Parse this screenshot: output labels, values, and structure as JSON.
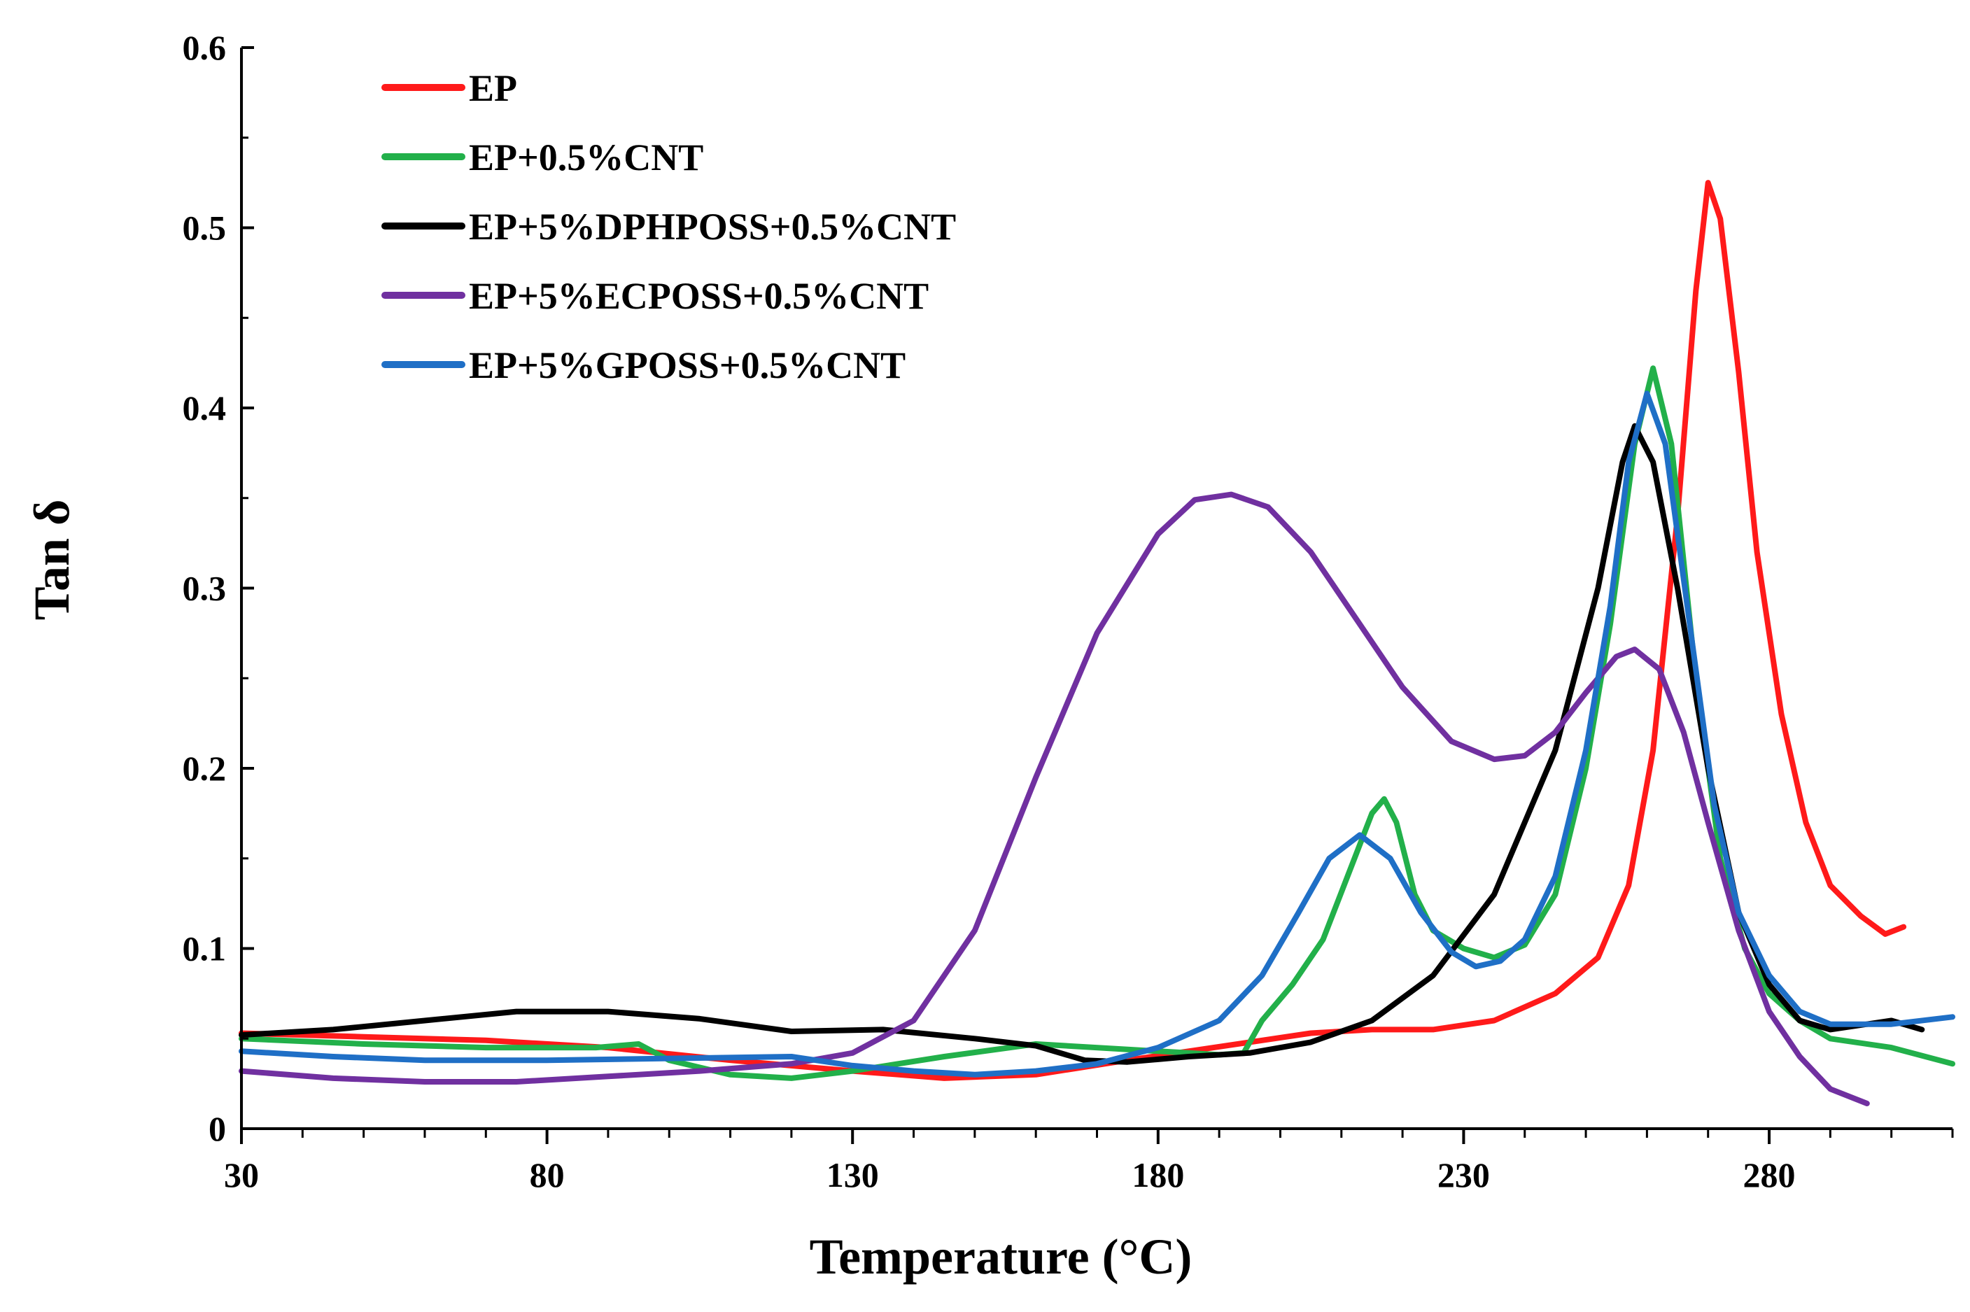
{
  "chart_data": {
    "type": "line",
    "title": "",
    "xlabel": "Temperature (°C)",
    "ylabel": "Tan δ",
    "xlim": [
      30,
      310
    ],
    "ylim": [
      0,
      0.6
    ],
    "xticks": [
      30,
      80,
      130,
      180,
      230,
      280
    ],
    "yticks": [
      0,
      0.1,
      0.2,
      0.3,
      0.4,
      0.5,
      0.6
    ],
    "xtick_labels": [
      "30",
      "80",
      "130",
      "180",
      "230",
      "280"
    ],
    "ytick_labels": [
      "0",
      "0.1",
      "0.2",
      "0.3",
      "0.4",
      "0.5",
      "0.6"
    ],
    "grid": false,
    "legend_position": "top-left",
    "series": [
      {
        "name": "EP",
        "color": "#ff1a1a",
        "points": [
          [
            30,
            0.053
          ],
          [
            50,
            0.051
          ],
          [
            70,
            0.049
          ],
          [
            90,
            0.045
          ],
          [
            110,
            0.038
          ],
          [
            130,
            0.032
          ],
          [
            145,
            0.028
          ],
          [
            160,
            0.03
          ],
          [
            175,
            0.038
          ],
          [
            185,
            0.043
          ],
          [
            195,
            0.048
          ],
          [
            205,
            0.053
          ],
          [
            215,
            0.055
          ],
          [
            225,
            0.055
          ],
          [
            235,
            0.06
          ],
          [
            245,
            0.075
          ],
          [
            252,
            0.095
          ],
          [
            257,
            0.135
          ],
          [
            261,
            0.21
          ],
          [
            265,
            0.34
          ],
          [
            268,
            0.465
          ],
          [
            270,
            0.525
          ],
          [
            272,
            0.505
          ],
          [
            275,
            0.42
          ],
          [
            278,
            0.32
          ],
          [
            282,
            0.23
          ],
          [
            286,
            0.17
          ],
          [
            290,
            0.135
          ],
          [
            295,
            0.118
          ],
          [
            299,
            0.108
          ],
          [
            302,
            0.112
          ]
        ]
      },
      {
        "name": "EP+0.5%CNT",
        "color": "#22b04a",
        "points": [
          [
            30,
            0.05
          ],
          [
            50,
            0.047
          ],
          [
            70,
            0.045
          ],
          [
            88,
            0.045
          ],
          [
            95,
            0.047
          ],
          [
            100,
            0.038
          ],
          [
            110,
            0.03
          ],
          [
            120,
            0.028
          ],
          [
            130,
            0.032
          ],
          [
            145,
            0.04
          ],
          [
            160,
            0.047
          ],
          [
            175,
            0.044
          ],
          [
            185,
            0.042
          ],
          [
            190,
            0.041
          ],
          [
            194,
            0.042
          ],
          [
            197,
            0.06
          ],
          [
            202,
            0.08
          ],
          [
            207,
            0.105
          ],
          [
            211,
            0.14
          ],
          [
            215,
            0.175
          ],
          [
            217,
            0.183
          ],
          [
            219,
            0.17
          ],
          [
            222,
            0.13
          ],
          [
            225,
            0.11
          ],
          [
            230,
            0.1
          ],
          [
            235,
            0.095
          ],
          [
            240,
            0.102
          ],
          [
            245,
            0.13
          ],
          [
            250,
            0.2
          ],
          [
            254,
            0.28
          ],
          [
            258,
            0.38
          ],
          [
            261,
            0.422
          ],
          [
            264,
            0.38
          ],
          [
            268,
            0.25
          ],
          [
            272,
            0.15
          ],
          [
            276,
            0.1
          ],
          [
            280,
            0.075
          ],
          [
            285,
            0.06
          ],
          [
            290,
            0.05
          ],
          [
            300,
            0.045
          ],
          [
            310,
            0.036
          ]
        ]
      },
      {
        "name": "EP+5%DPHPOSS+0.5%CNT",
        "color": "#000000",
        "points": [
          [
            30,
            0.052
          ],
          [
            45,
            0.055
          ],
          [
            60,
            0.06
          ],
          [
            75,
            0.065
          ],
          [
            90,
            0.065
          ],
          [
            105,
            0.061
          ],
          [
            120,
            0.054
          ],
          [
            135,
            0.055
          ],
          [
            150,
            0.05
          ],
          [
            160,
            0.046
          ],
          [
            168,
            0.038
          ],
          [
            175,
            0.037
          ],
          [
            185,
            0.04
          ],
          [
            195,
            0.042
          ],
          [
            205,
            0.048
          ],
          [
            215,
            0.06
          ],
          [
            225,
            0.085
          ],
          [
            235,
            0.13
          ],
          [
            245,
            0.21
          ],
          [
            252,
            0.3
          ],
          [
            256,
            0.37
          ],
          [
            258,
            0.39
          ],
          [
            261,
            0.37
          ],
          [
            265,
            0.3
          ],
          [
            270,
            0.2
          ],
          [
            275,
            0.12
          ],
          [
            280,
            0.08
          ],
          [
            285,
            0.06
          ],
          [
            290,
            0.055
          ],
          [
            300,
            0.06
          ],
          [
            305,
            0.055
          ]
        ]
      },
      {
        "name": "EP+5%ECPOSS+0.5%CNT",
        "color": "#7030a0",
        "points": [
          [
            30,
            0.032
          ],
          [
            45,
            0.028
          ],
          [
            60,
            0.026
          ],
          [
            75,
            0.026
          ],
          [
            90,
            0.029
          ],
          [
            105,
            0.032
          ],
          [
            120,
            0.036
          ],
          [
            130,
            0.042
          ],
          [
            140,
            0.06
          ],
          [
            150,
            0.11
          ],
          [
            160,
            0.195
          ],
          [
            170,
            0.275
          ],
          [
            180,
            0.33
          ],
          [
            186,
            0.349
          ],
          [
            192,
            0.352
          ],
          [
            198,
            0.345
          ],
          [
            205,
            0.32
          ],
          [
            212,
            0.285
          ],
          [
            220,
            0.245
          ],
          [
            228,
            0.215
          ],
          [
            235,
            0.205
          ],
          [
            240,
            0.207
          ],
          [
            245,
            0.22
          ],
          [
            250,
            0.242
          ],
          [
            255,
            0.262
          ],
          [
            258,
            0.266
          ],
          [
            262,
            0.255
          ],
          [
            266,
            0.22
          ],
          [
            270,
            0.17
          ],
          [
            275,
            0.11
          ],
          [
            280,
            0.065
          ],
          [
            285,
            0.04
          ],
          [
            290,
            0.022
          ],
          [
            296,
            0.014
          ]
        ]
      },
      {
        "name": "EP+5%GPOSS+0.5%CNT",
        "color": "#1f6fc6",
        "points": [
          [
            30,
            0.043
          ],
          [
            45,
            0.04
          ],
          [
            60,
            0.038
          ],
          [
            80,
            0.038
          ],
          [
            100,
            0.039
          ],
          [
            120,
            0.04
          ],
          [
            130,
            0.035
          ],
          [
            140,
            0.032
          ],
          [
            150,
            0.03
          ],
          [
            160,
            0.032
          ],
          [
            170,
            0.036
          ],
          [
            180,
            0.045
          ],
          [
            190,
            0.06
          ],
          [
            197,
            0.085
          ],
          [
            203,
            0.12
          ],
          [
            208,
            0.15
          ],
          [
            213,
            0.163
          ],
          [
            218,
            0.15
          ],
          [
            223,
            0.12
          ],
          [
            228,
            0.098
          ],
          [
            232,
            0.09
          ],
          [
            236,
            0.093
          ],
          [
            240,
            0.105
          ],
          [
            245,
            0.14
          ],
          [
            250,
            0.21
          ],
          [
            254,
            0.29
          ],
          [
            257,
            0.37
          ],
          [
            260,
            0.408
          ],
          [
            263,
            0.38
          ],
          [
            267,
            0.28
          ],
          [
            271,
            0.18
          ],
          [
            275,
            0.12
          ],
          [
            280,
            0.085
          ],
          [
            285,
            0.065
          ],
          [
            290,
            0.058
          ],
          [
            300,
            0.058
          ],
          [
            310,
            0.062
          ]
        ]
      }
    ]
  }
}
